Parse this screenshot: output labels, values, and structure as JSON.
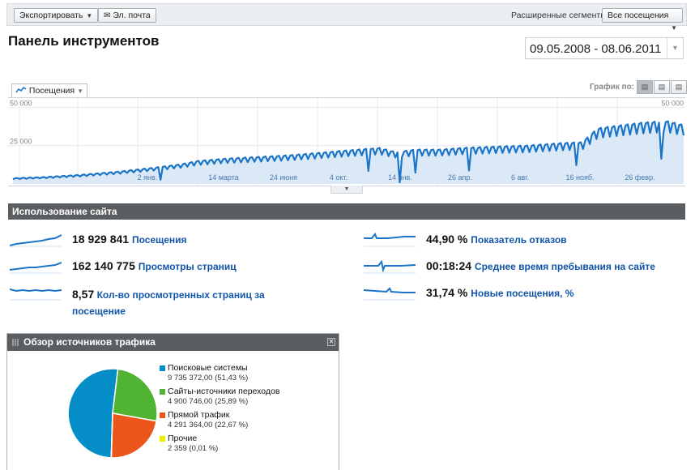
{
  "toolbar": {
    "export_label": "Экспортировать",
    "email_label": "Эл. почта",
    "segments_label": "Расширенные сегменты:",
    "segments_value": "Все посещения"
  },
  "page": {
    "title": "Панель инструментов",
    "date_range": "09.05.2008 - 08.06.2011"
  },
  "chart": {
    "metric_label": "Посещения",
    "graph_by_label": "График по:",
    "view_buttons": [
      "day-icon",
      "week-icon",
      "month-icon"
    ],
    "accent": "#1a74c8",
    "fill": "#dbe9f7"
  },
  "chart_data": {
    "type": "area",
    "series": [
      {
        "name": "Посещения"
      }
    ],
    "yticks": [
      "50 000",
      "25 000"
    ],
    "xticks": [
      "2 янв.",
      "14 марта",
      "24 июня",
      "4 окт.",
      "14 янв.",
      "26 апр.",
      "6 авг.",
      "16 нояб.",
      "26 февр."
    ],
    "x": [
      "2008-05-09",
      "2008-07-01",
      "2008-09-01",
      "2008-11-01",
      "2009-01-02",
      "2009-02-15",
      "2009-03-14",
      "2009-05-01",
      "2009-06-24",
      "2009-08-15",
      "2009-10-04",
      "2009-11-20",
      "2010-01-14",
      "2010-02-10",
      "2010-03-15",
      "2010-04-26",
      "2010-06-01",
      "2010-08-06",
      "2010-09-20",
      "2010-11-16",
      "2010-12-20",
      "2011-01-15",
      "2011-02-26",
      "2011-04-01",
      "2011-05-10",
      "2011-06-08"
    ],
    "values": [
      3500,
      4200,
      5600,
      7500,
      10000,
      12000,
      14000,
      15500,
      16500,
      17500,
      19000,
      20500,
      22000,
      19500,
      21000,
      21000,
      22000,
      23000,
      23500,
      25000,
      25500,
      34000,
      36000,
      37500,
      38500,
      36000
    ],
    "ylim": [
      0,
      55000
    ]
  },
  "usage": {
    "section_title": "Использование сайта",
    "stats": [
      {
        "value": "18 929 841",
        "label": "Посещения"
      },
      {
        "value": "162 140 775",
        "label": "Просмотры страниц"
      },
      {
        "value": "8,57",
        "label": "Кол-во просмотренных страниц за посещение"
      },
      {
        "value": "44,90 %",
        "label": "Показатель отказов"
      },
      {
        "value": "00:18:24",
        "label": "Среднее время пребывания на сайте"
      },
      {
        "value": "31,74 %",
        "label": "Новые посещения, %"
      }
    ]
  },
  "traffic": {
    "title": "Обзор источников трафика",
    "sources": [
      {
        "name": "Поисковые системы",
        "detail": "9 735 372,00 (51,43 %)",
        "pct": 51.43,
        "color": "#058dc7"
      },
      {
        "name": "Сайты-источники переходов",
        "detail": "4 900 746,00 (25,89 %)",
        "pct": 25.89,
        "color": "#50b432"
      },
      {
        "name": "Прямой трафик",
        "detail": "4 291 364,00 (22,67 %)",
        "pct": 22.67,
        "color": "#ed561b"
      },
      {
        "name": "Прочие",
        "detail": "2 359 (0,01 %)",
        "pct": 0.01,
        "color": "#edef00"
      }
    ]
  }
}
